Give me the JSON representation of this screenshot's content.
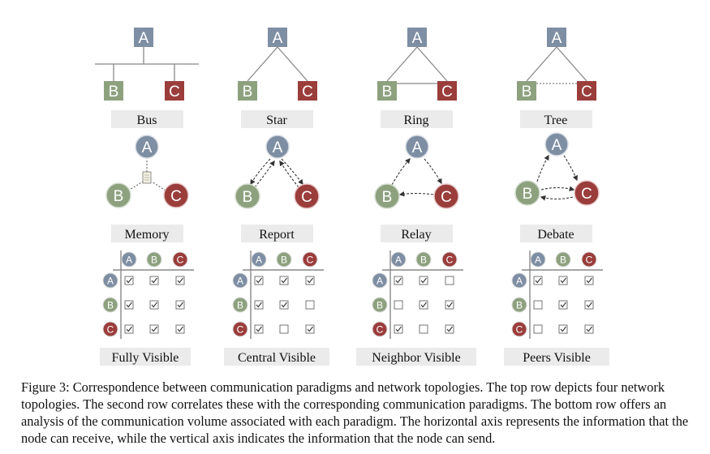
{
  "colors": {
    "node_a": "#7e8ea3",
    "node_b": "#8da17f",
    "node_c": "#9a3d3b",
    "label_bg": "#ebebeb",
    "line": "#888888",
    "arrow": "#333333"
  },
  "nodes": {
    "a": "A",
    "b": "B",
    "c": "C"
  },
  "topologies": [
    {
      "label": "Bus"
    },
    {
      "label": "Star"
    },
    {
      "label": "Ring"
    },
    {
      "label": "Tree"
    }
  ],
  "paradigms": [
    {
      "label": "Memory",
      "icon": "memory-pool-icon"
    },
    {
      "label": "Report"
    },
    {
      "label": "Relay"
    },
    {
      "label": "Debate"
    }
  ],
  "visibility": [
    {
      "label": "Fully Visible",
      "grid": [
        [
          true,
          true,
          true
        ],
        [
          true,
          true,
          true
        ],
        [
          true,
          true,
          true
        ]
      ]
    },
    {
      "label": "Central Visible",
      "grid": [
        [
          true,
          true,
          true
        ],
        [
          true,
          true,
          false
        ],
        [
          true,
          false,
          true
        ]
      ]
    },
    {
      "label": "Neighbor Visible",
      "grid": [
        [
          true,
          true,
          false
        ],
        [
          false,
          true,
          true
        ],
        [
          true,
          false,
          true
        ]
      ]
    },
    {
      "label": "Peers Visible",
      "grid": [
        [
          true,
          true,
          true
        ],
        [
          false,
          true,
          true
        ],
        [
          false,
          true,
          true
        ]
      ]
    }
  ],
  "caption": "Figure 3: Correspondence between communication paradigms and network topologies. The top row depicts four network topologies. The second row correlates these with the corresponding communication paradigms. The bottom row offers an analysis of the communication volume associated with each paradigm. The horizontal axis represents the information that the node can receive, while the vertical axis indicates the information that the node can send."
}
